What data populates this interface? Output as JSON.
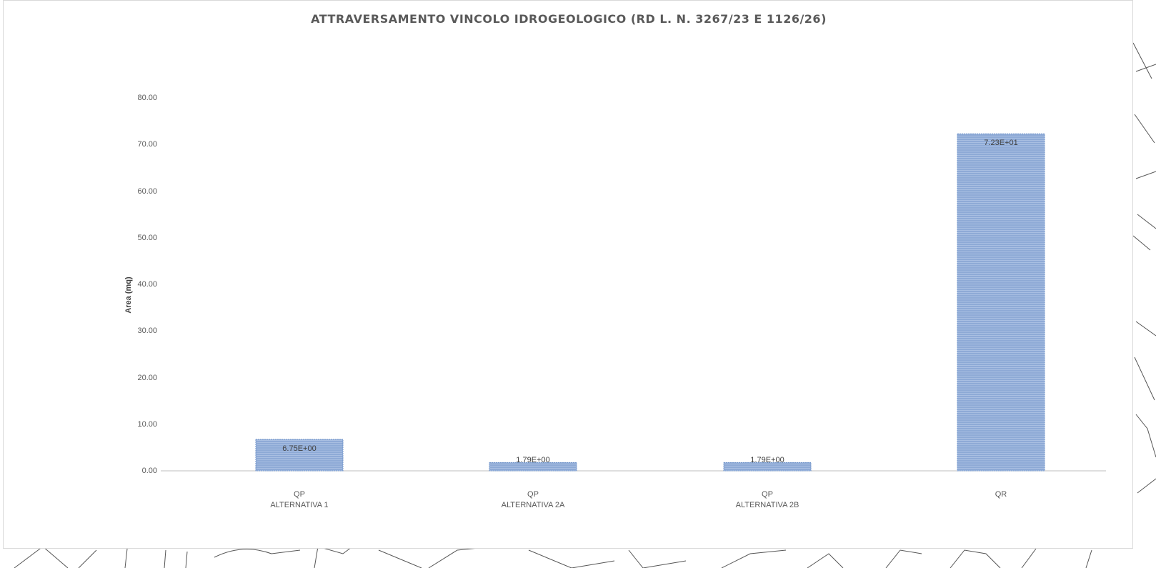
{
  "chart_data": {
    "type": "bar",
    "title": "ATTRAVERSAMENTO VINCOLO IDROGEOLOGICO (RD L. N. 3267/23 E 1126/26)",
    "ylabel": "Area (mq)",
    "xlabel": "",
    "ylim": [
      0,
      80
    ],
    "yticks": [
      "0.00",
      "10.00",
      "20.00",
      "30.00",
      "40.00",
      "50.00",
      "60.00",
      "70.00",
      "80.00"
    ],
    "categories": [
      [
        "QP",
        "ALTERNATIVA 1"
      ],
      [
        "QP",
        "ALTERNATIVA 2A"
      ],
      [
        "QP",
        "ALTERNATIVA 2B"
      ],
      [
        "QR"
      ]
    ],
    "values": [
      6.75,
      1.79,
      1.79,
      72.3
    ],
    "data_labels": [
      "6.75E+00",
      "1.79E+00",
      "1.79E+00",
      "7.23E+01"
    ],
    "grid": false,
    "legend": "none",
    "bar_color": "#8eaad6",
    "bar_border_color": "#6f93c9"
  }
}
